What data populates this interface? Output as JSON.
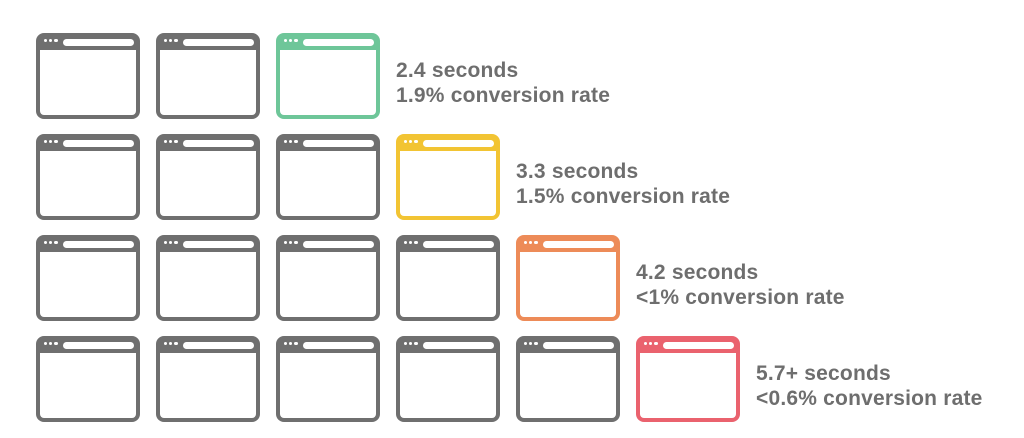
{
  "page": {
    "background_hex": "#ffffff",
    "text_hex": "#6e6e6e"
  },
  "icon": {
    "name": "browser-window-icon",
    "base_hex": "#6f6f6f",
    "titlebar_dot_count": 3
  },
  "chart_data": {
    "type": "bar",
    "subtype": "pictogram-unit-chart",
    "unit_icon": "browser-window-icon",
    "legend_position": "right-of-last-icon",
    "grid": false,
    "rows": [
      {
        "icon_count": 3,
        "highlight_hex": "#6ec699",
        "seconds_label": "2.4 seconds",
        "conversion_label": "1.9% conversion rate"
      },
      {
        "icon_count": 4,
        "highlight_hex": "#f2c433",
        "seconds_label": "3.3 seconds",
        "conversion_label": "1.5% conversion rate"
      },
      {
        "icon_count": 5,
        "highlight_hex": "#ed8b58",
        "seconds_label": "4.2 seconds",
        "conversion_label": "<1% conversion rate"
      },
      {
        "icon_count": 6,
        "highlight_hex": "#ea626e",
        "seconds_label": "5.7+ seconds",
        "conversion_label": "<0.6% conversion rate"
      }
    ]
  }
}
